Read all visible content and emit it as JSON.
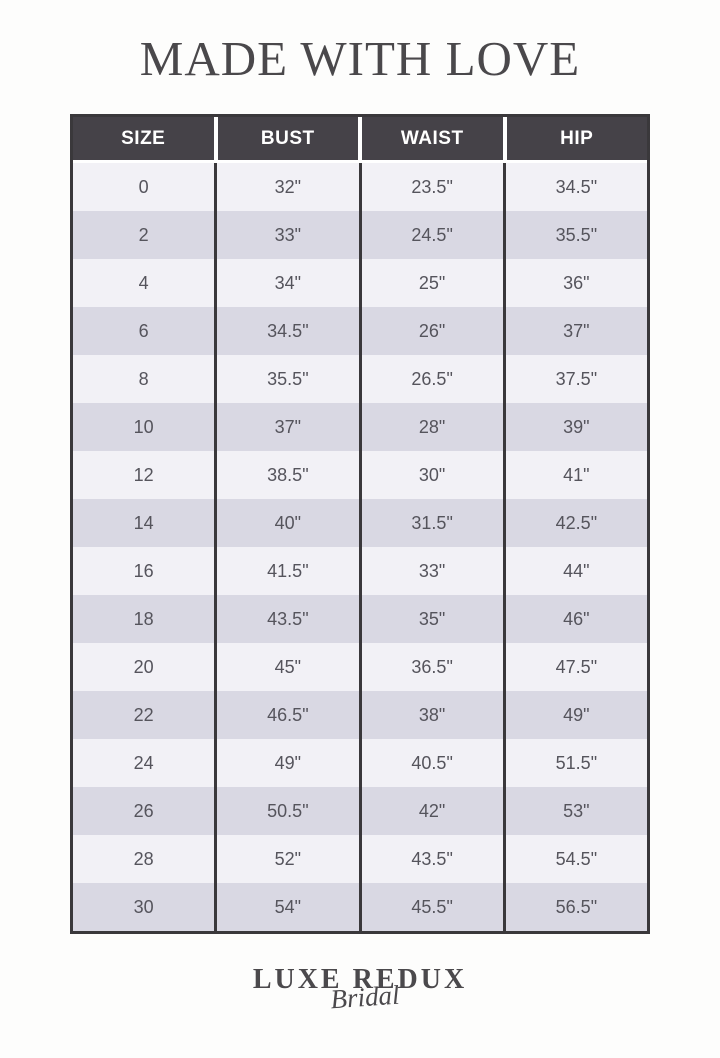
{
  "title": "MADE WITH LOVE",
  "logo": {
    "line1": "LUXE REDUX",
    "line2": "Bridal"
  },
  "colors": {
    "header_bg": "#454248",
    "header_text": "#ffffff",
    "row_light": "#f2f1f6",
    "row_dark": "#d9d8e3",
    "border": "#3a383b",
    "body_text": "#55545c",
    "title_text": "#4a484b",
    "page_bg": "#fdfdfc"
  },
  "chart_data": {
    "type": "table",
    "title": "MADE WITH LOVE",
    "columns": [
      "SIZE",
      "BUST",
      "WAIST",
      "HIP"
    ],
    "rows": [
      [
        "0",
        "32\"",
        "23.5\"",
        "34.5\""
      ],
      [
        "2",
        "33\"",
        "24.5\"",
        "35.5\""
      ],
      [
        "4",
        "34\"",
        "25\"",
        "36\""
      ],
      [
        "6",
        "34.5\"",
        "26\"",
        "37\""
      ],
      [
        "8",
        "35.5\"",
        "26.5\"",
        "37.5\""
      ],
      [
        "10",
        "37\"",
        "28\"",
        "39\""
      ],
      [
        "12",
        "38.5\"",
        "30\"",
        "41\""
      ],
      [
        "14",
        "40\"",
        "31.5\"",
        "42.5\""
      ],
      [
        "16",
        "41.5\"",
        "33\"",
        "44\""
      ],
      [
        "18",
        "43.5\"",
        "35\"",
        "46\""
      ],
      [
        "20",
        "45\"",
        "36.5\"",
        "47.5\""
      ],
      [
        "22",
        "46.5\"",
        "38\"",
        "49\""
      ],
      [
        "24",
        "49\"",
        "40.5\"",
        "51.5\""
      ],
      [
        "26",
        "50.5\"",
        "42\"",
        "53\""
      ],
      [
        "28",
        "52\"",
        "43.5\"",
        "54.5\""
      ],
      [
        "30",
        "54\"",
        "45.5\"",
        "56.5\""
      ]
    ]
  }
}
